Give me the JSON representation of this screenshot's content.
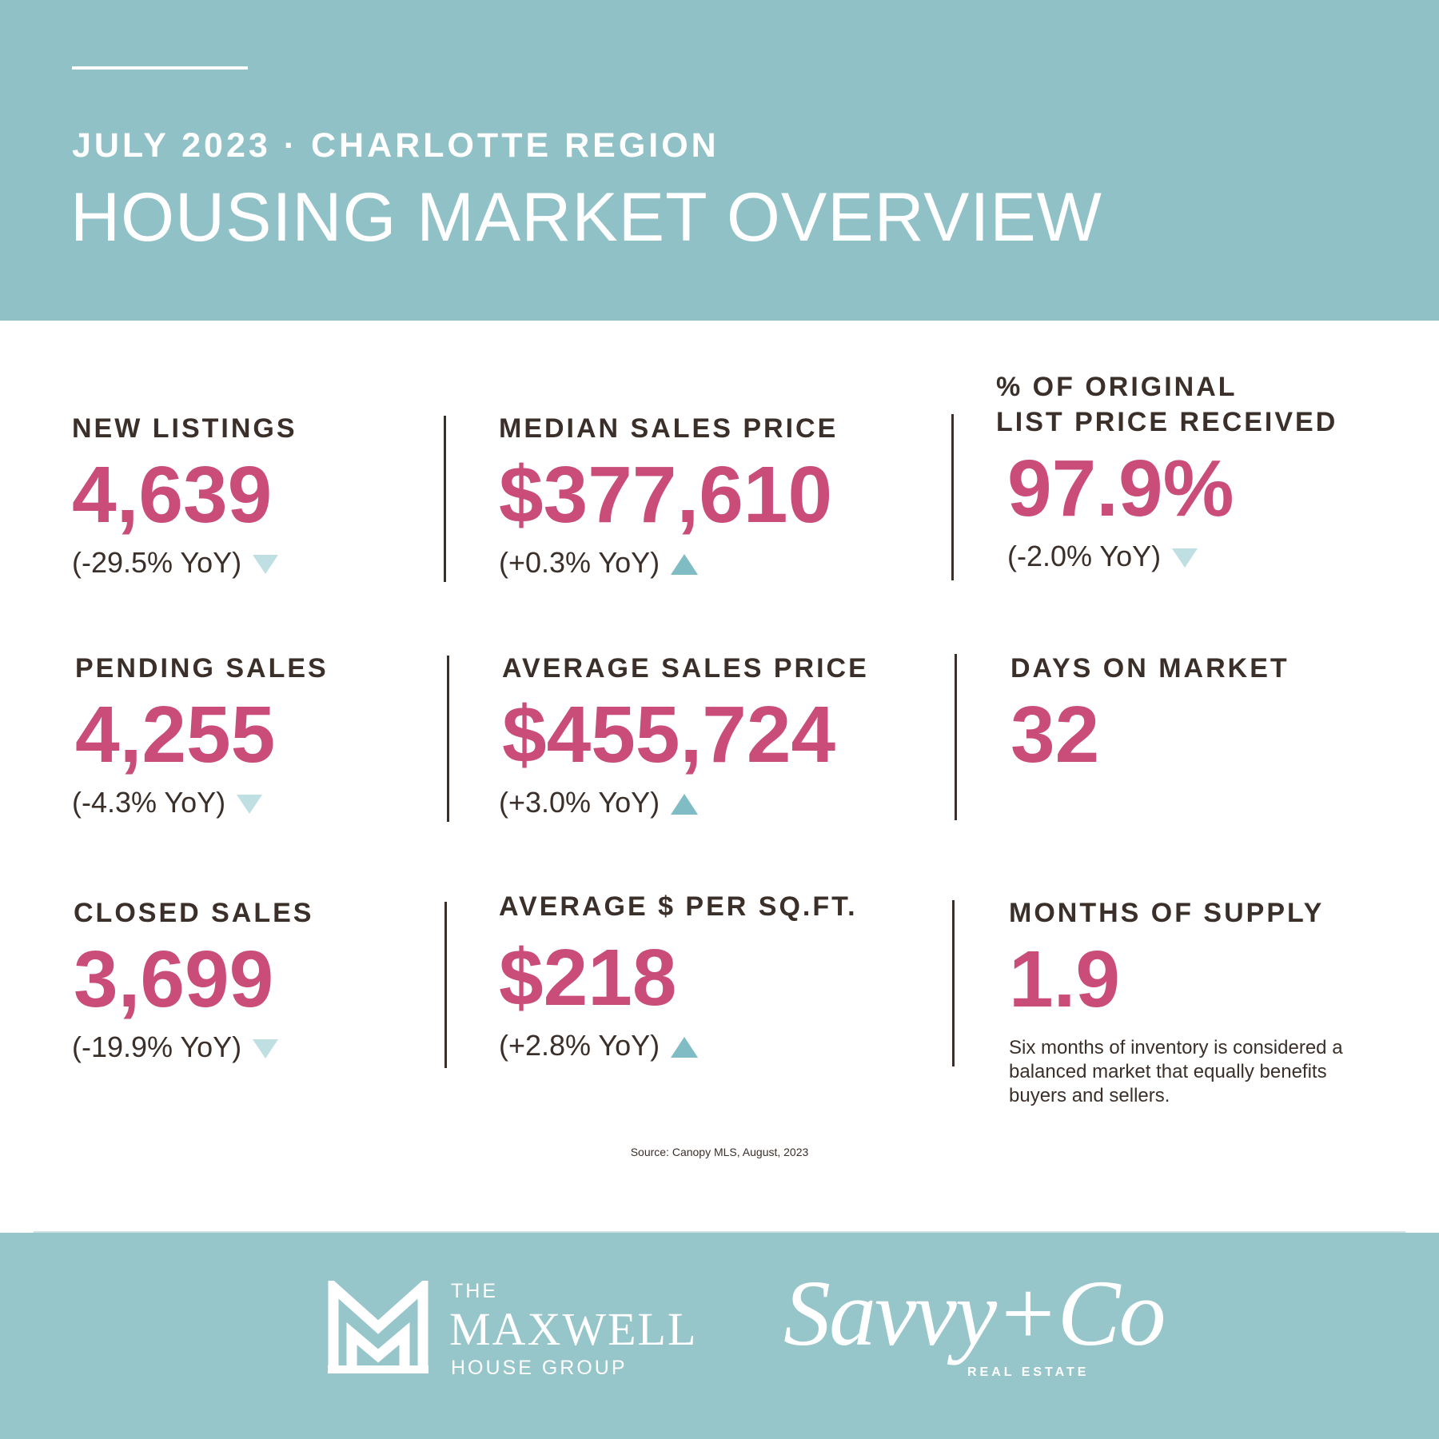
{
  "header": {
    "subtitle": "JULY 2023 · CHARLOTTE REGION",
    "title": "HOUSING MARKET OVERVIEW"
  },
  "stats": [
    {
      "label": "NEW LISTINGS",
      "value": "4,639",
      "change": "(-29.5% YoY)",
      "direction": "down"
    },
    {
      "label": "MEDIAN SALES PRICE",
      "value": "$377,610",
      "change": "(+0.3% YoY)",
      "direction": "up"
    },
    {
      "label_line1": "% OF ORIGINAL",
      "label_line2": "LIST PRICE RECEIVED",
      "value": "97.9%",
      "change": "(-2.0% YoY)",
      "direction": "down"
    },
    {
      "label": "PENDING SALES",
      "value": "4,255",
      "change": "(-4.3% YoY)",
      "direction": "down"
    },
    {
      "label": "AVERAGE SALES PRICE",
      "value": "$455,724",
      "change": "(+3.0% YoY)",
      "direction": "up"
    },
    {
      "label": "DAYS ON MARKET",
      "value": "32"
    },
    {
      "label": "CLOSED SALES",
      "value": "3,699",
      "change": "(-19.9% YoY)",
      "direction": "down"
    },
    {
      "label": "AVERAGE $ PER SQ.FT.",
      "value": "$218",
      "change": "(+2.8% YoY)",
      "direction": "up"
    },
    {
      "label": "MONTHS OF SUPPLY",
      "value": "1.9",
      "note": "Six months of inventory is considered a balanced market that equally benefits buyers and sellers."
    }
  ],
  "source": "Source: Canopy MLS, August, 2023",
  "footer": {
    "maxwell_the": "THE",
    "maxwell_name": "MAXWELL",
    "maxwell_sub": "HOUSE GROUP",
    "savvy_name": "Savvy+Co",
    "savvy_sub": "REAL ESTATE"
  },
  "colors": {
    "banner": "#8fc1c7",
    "value": "#c94d78",
    "text": "#3b2f2a",
    "arrow_down": "#bfdfe2",
    "arrow_up": "#7fbcc3"
  },
  "icons": {
    "down": "triangle-down-icon",
    "up": "triangle-up-icon"
  }
}
